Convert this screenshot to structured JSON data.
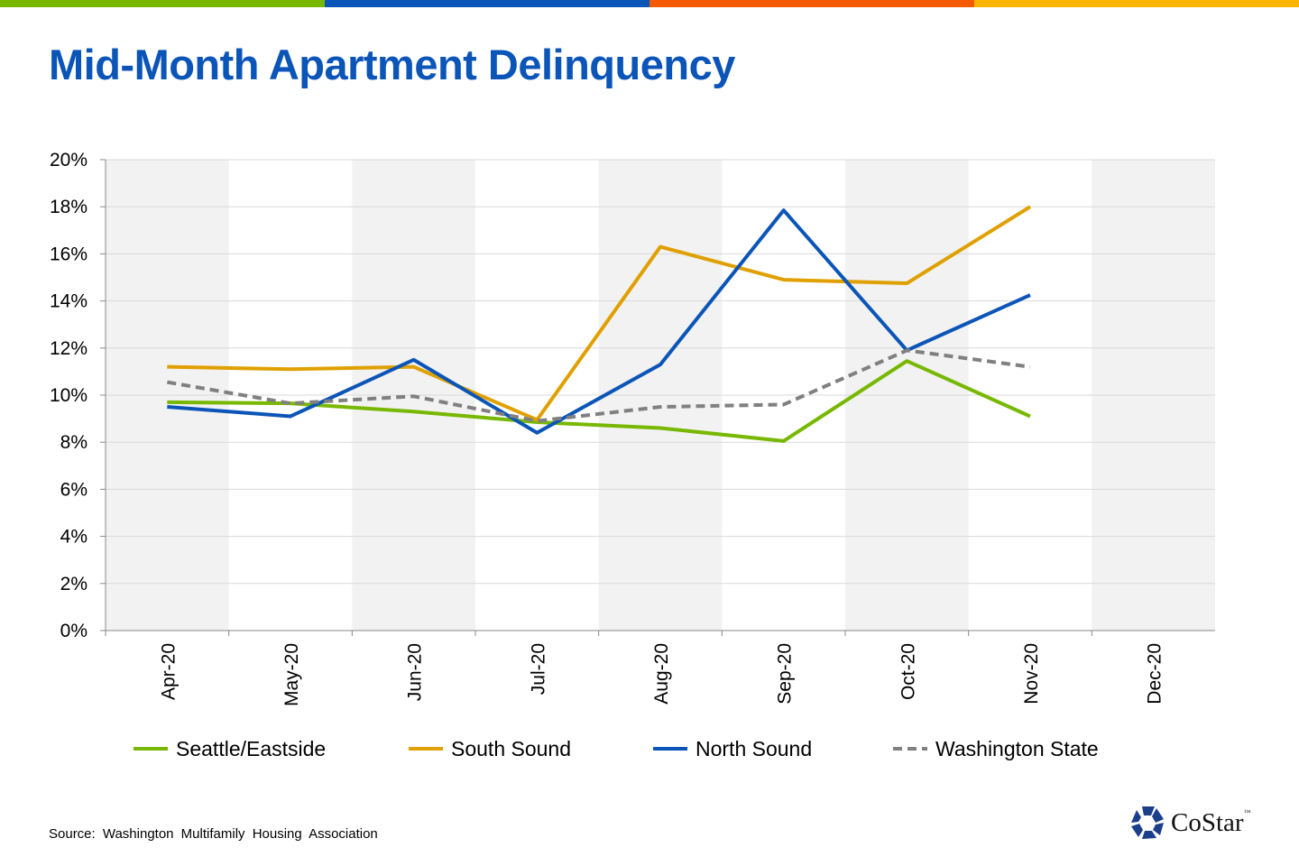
{
  "top_bar_colors": [
    "#78b800",
    "#0b55b8",
    "#f55a00",
    "#ffb400"
  ],
  "title": "Mid-Month Apartment Delinquency",
  "source": "Source:  Washington  Multifamily  Housing  Association",
  "logo": {
    "name": "CoStar",
    "tm": "™"
  },
  "chart_data": {
    "type": "line",
    "title": "Mid-Month Apartment Delinquency",
    "categories": [
      "Apr-20",
      "May-20",
      "Jun-20",
      "Jul-20",
      "Aug-20",
      "Sep-20",
      "Oct-20",
      "Nov-20",
      "Dec-20"
    ],
    "ylim": [
      0,
      20
    ],
    "yticks": [
      "0%",
      "2%",
      "4%",
      "6%",
      "8%",
      "10%",
      "12%",
      "14%",
      "16%",
      "18%",
      "20%"
    ],
    "grid": true,
    "legend": "bottom",
    "series": [
      {
        "name": "Seattle/Eastside",
        "color": "#78b800",
        "dash": false,
        "values": [
          9.7,
          9.65,
          9.3,
          8.85,
          8.6,
          8.05,
          11.45,
          9.1,
          null
        ]
      },
      {
        "name": "South Sound",
        "color": "#e0a000",
        "dash": false,
        "values": [
          11.2,
          11.1,
          11.2,
          8.95,
          16.3,
          14.9,
          14.75,
          18.0,
          null
        ]
      },
      {
        "name": "North Sound",
        "color": "#0b55b8",
        "dash": false,
        "values": [
          9.5,
          9.1,
          11.5,
          8.4,
          11.3,
          17.85,
          11.9,
          14.25,
          null
        ]
      },
      {
        "name": "Washington State",
        "color": "#808080",
        "dash": true,
        "values": [
          10.55,
          9.65,
          9.95,
          8.9,
          9.5,
          9.6,
          11.9,
          11.2,
          null
        ]
      }
    ]
  }
}
